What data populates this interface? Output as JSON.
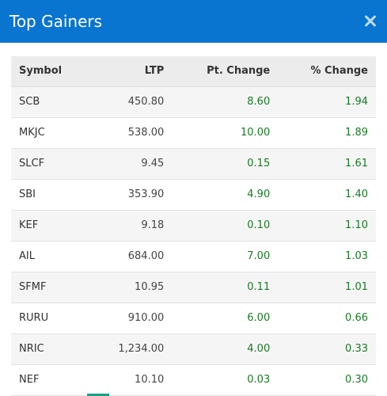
{
  "dialog": {
    "title": "Top Gainers"
  },
  "table": {
    "headers": [
      "Symbol",
      "LTP",
      "Pt. Change",
      "% Change"
    ],
    "rows": [
      [
        "SCB",
        "450.80",
        "8.60",
        "1.94"
      ],
      [
        "MKJC",
        "538.00",
        "10.00",
        "1.89"
      ],
      [
        "SLCF",
        "9.45",
        "0.15",
        "1.61"
      ],
      [
        "SBI",
        "353.90",
        "4.90",
        "1.40"
      ],
      [
        "KEF",
        "9.18",
        "0.10",
        "1.10"
      ],
      [
        "AIL",
        "684.00",
        "7.00",
        "1.03"
      ],
      [
        "SFMF",
        "10.95",
        "0.11",
        "1.01"
      ],
      [
        "RURU",
        "910.00",
        "6.00",
        "0.66"
      ],
      [
        "NRIC",
        "1,234.00",
        "4.00",
        "0.33"
      ],
      [
        "NEF",
        "10.10",
        "0.03",
        "0.30"
      ]
    ]
  },
  "colors": {
    "header_bg": "#0a74d1",
    "positive": "#1a7a24"
  },
  "icons": {
    "close": "close-icon"
  }
}
